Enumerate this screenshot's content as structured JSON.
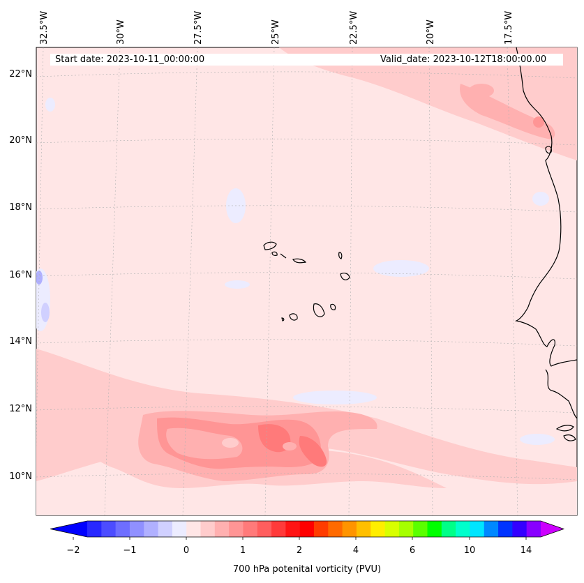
{
  "map": {
    "lon_labels": [
      "32.5°W",
      "30°W",
      "27.5°W",
      "25°W",
      "22.5°W",
      "20°W",
      "17.5°W"
    ],
    "lat_labels": [
      "22°N",
      "20°N",
      "18°N",
      "16°N",
      "14°N",
      "12°N",
      "10°N"
    ],
    "start_date": "Start date: 2023-10-11_00:00:00",
    "valid_date": "Valid_date: 2023-10-12T18:00:00.00",
    "field": "700 hPa potential vorticity",
    "background_color": "#ffe6e6"
  },
  "colorbar": {
    "ticks": [
      "−2",
      "−1",
      "0",
      "1",
      "2",
      "4",
      "6",
      "10",
      "14"
    ],
    "label": "700 hPa potenital vorticity (PVU)",
    "colors": [
      "#0000ff",
      "#2828ff",
      "#4c4cff",
      "#6e6eff",
      "#9090ff",
      "#b0b0ff",
      "#d0d0ff",
      "#ececff",
      "#ffe6e6",
      "#ffcccc",
      "#ffb0b0",
      "#ff9595",
      "#ff7a7a",
      "#ff5e5e",
      "#ff3a3a",
      "#ff1414",
      "#ff0000",
      "#ff3c00",
      "#ff6a00",
      "#ff9400",
      "#ffbf00",
      "#ffee00",
      "#d8ff00",
      "#a6ff00",
      "#5aff00",
      "#00ff00",
      "#00ff88",
      "#00ffcc",
      "#00e5ff",
      "#0088ff",
      "#0033ff",
      "#3300ff",
      "#8800ff",
      "#cc00ff"
    ]
  }
}
